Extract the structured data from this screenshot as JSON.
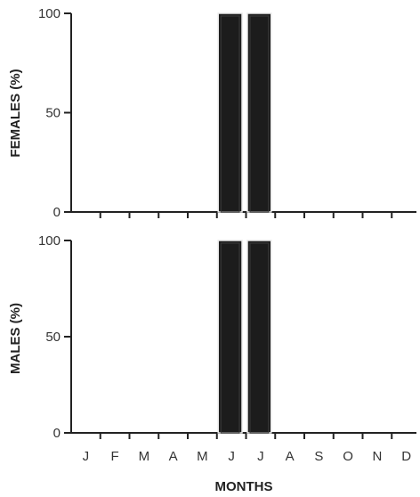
{
  "chart_data": [
    {
      "type": "bar",
      "categories": [
        "J",
        "F",
        "M",
        "A",
        "M",
        "J",
        "J",
        "A",
        "S",
        "O",
        "N",
        "D"
      ],
      "values": [
        0,
        0,
        0,
        0,
        0,
        100,
        100,
        0,
        0,
        0,
        0,
        0
      ],
      "xlabel": "",
      "ylabel": "FEMALES (%)",
      "ylim": [
        0,
        100
      ],
      "yticks": [
        "0",
        "50",
        "100"
      ],
      "grid": false
    },
    {
      "type": "bar",
      "categories": [
        "J",
        "F",
        "M",
        "A",
        "M",
        "J",
        "J",
        "A",
        "S",
        "O",
        "N",
        "D"
      ],
      "values": [
        0,
        0,
        0,
        0,
        0,
        100,
        100,
        0,
        0,
        0,
        0,
        0
      ],
      "xlabel": "MONTHS",
      "ylabel": "MALES (%)",
      "ylim": [
        0,
        100
      ],
      "yticks": [
        "0",
        "50",
        "100"
      ],
      "grid": false
    }
  ],
  "colors": {
    "bar_fill": "#1c1c1c",
    "axis": "#222222"
  }
}
